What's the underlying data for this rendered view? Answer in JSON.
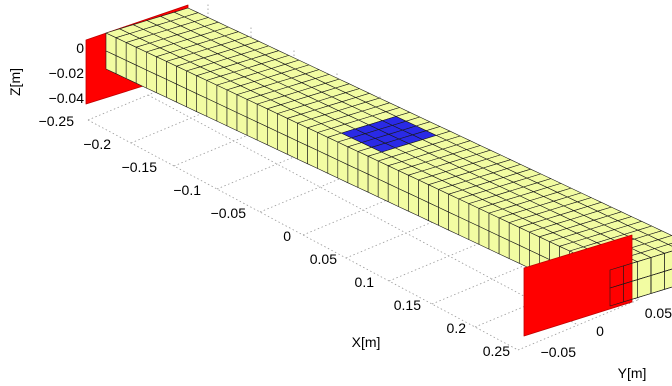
{
  "figure": {
    "type": "3d-finite-element-mesh",
    "z_label": "Z[m]",
    "x_label": "X[m]",
    "y_label": "Y[m]",
    "z_ticks": [
      "0",
      "−0.02",
      "−0.04"
    ],
    "x_ticks": [
      "−0.25",
      "−0.2",
      "−0.15",
      "−0.1",
      "−0.05",
      "0",
      "0.05",
      "0.1",
      "0.15",
      "0.2",
      "0.25"
    ],
    "y_ticks": [
      "−0.05",
      "0",
      "0.05"
    ],
    "mesh": {
      "length_cells": 50,
      "width_cells": 6,
      "depth_cells": 2
    },
    "loaded_patch": {
      "x_from_cell": 22,
      "x_to_cell": 26,
      "y_from_cell": 1,
      "y_to_cell": 5
    },
    "colors": {
      "beam_face": "#f2fca2",
      "mesh_line": "#1a1a1a",
      "end_support": "#ff0000",
      "loaded_patch": "#2a2ae6",
      "grid_line": "#9a9a9a"
    },
    "grid": true,
    "end_supports": 2
  }
}
